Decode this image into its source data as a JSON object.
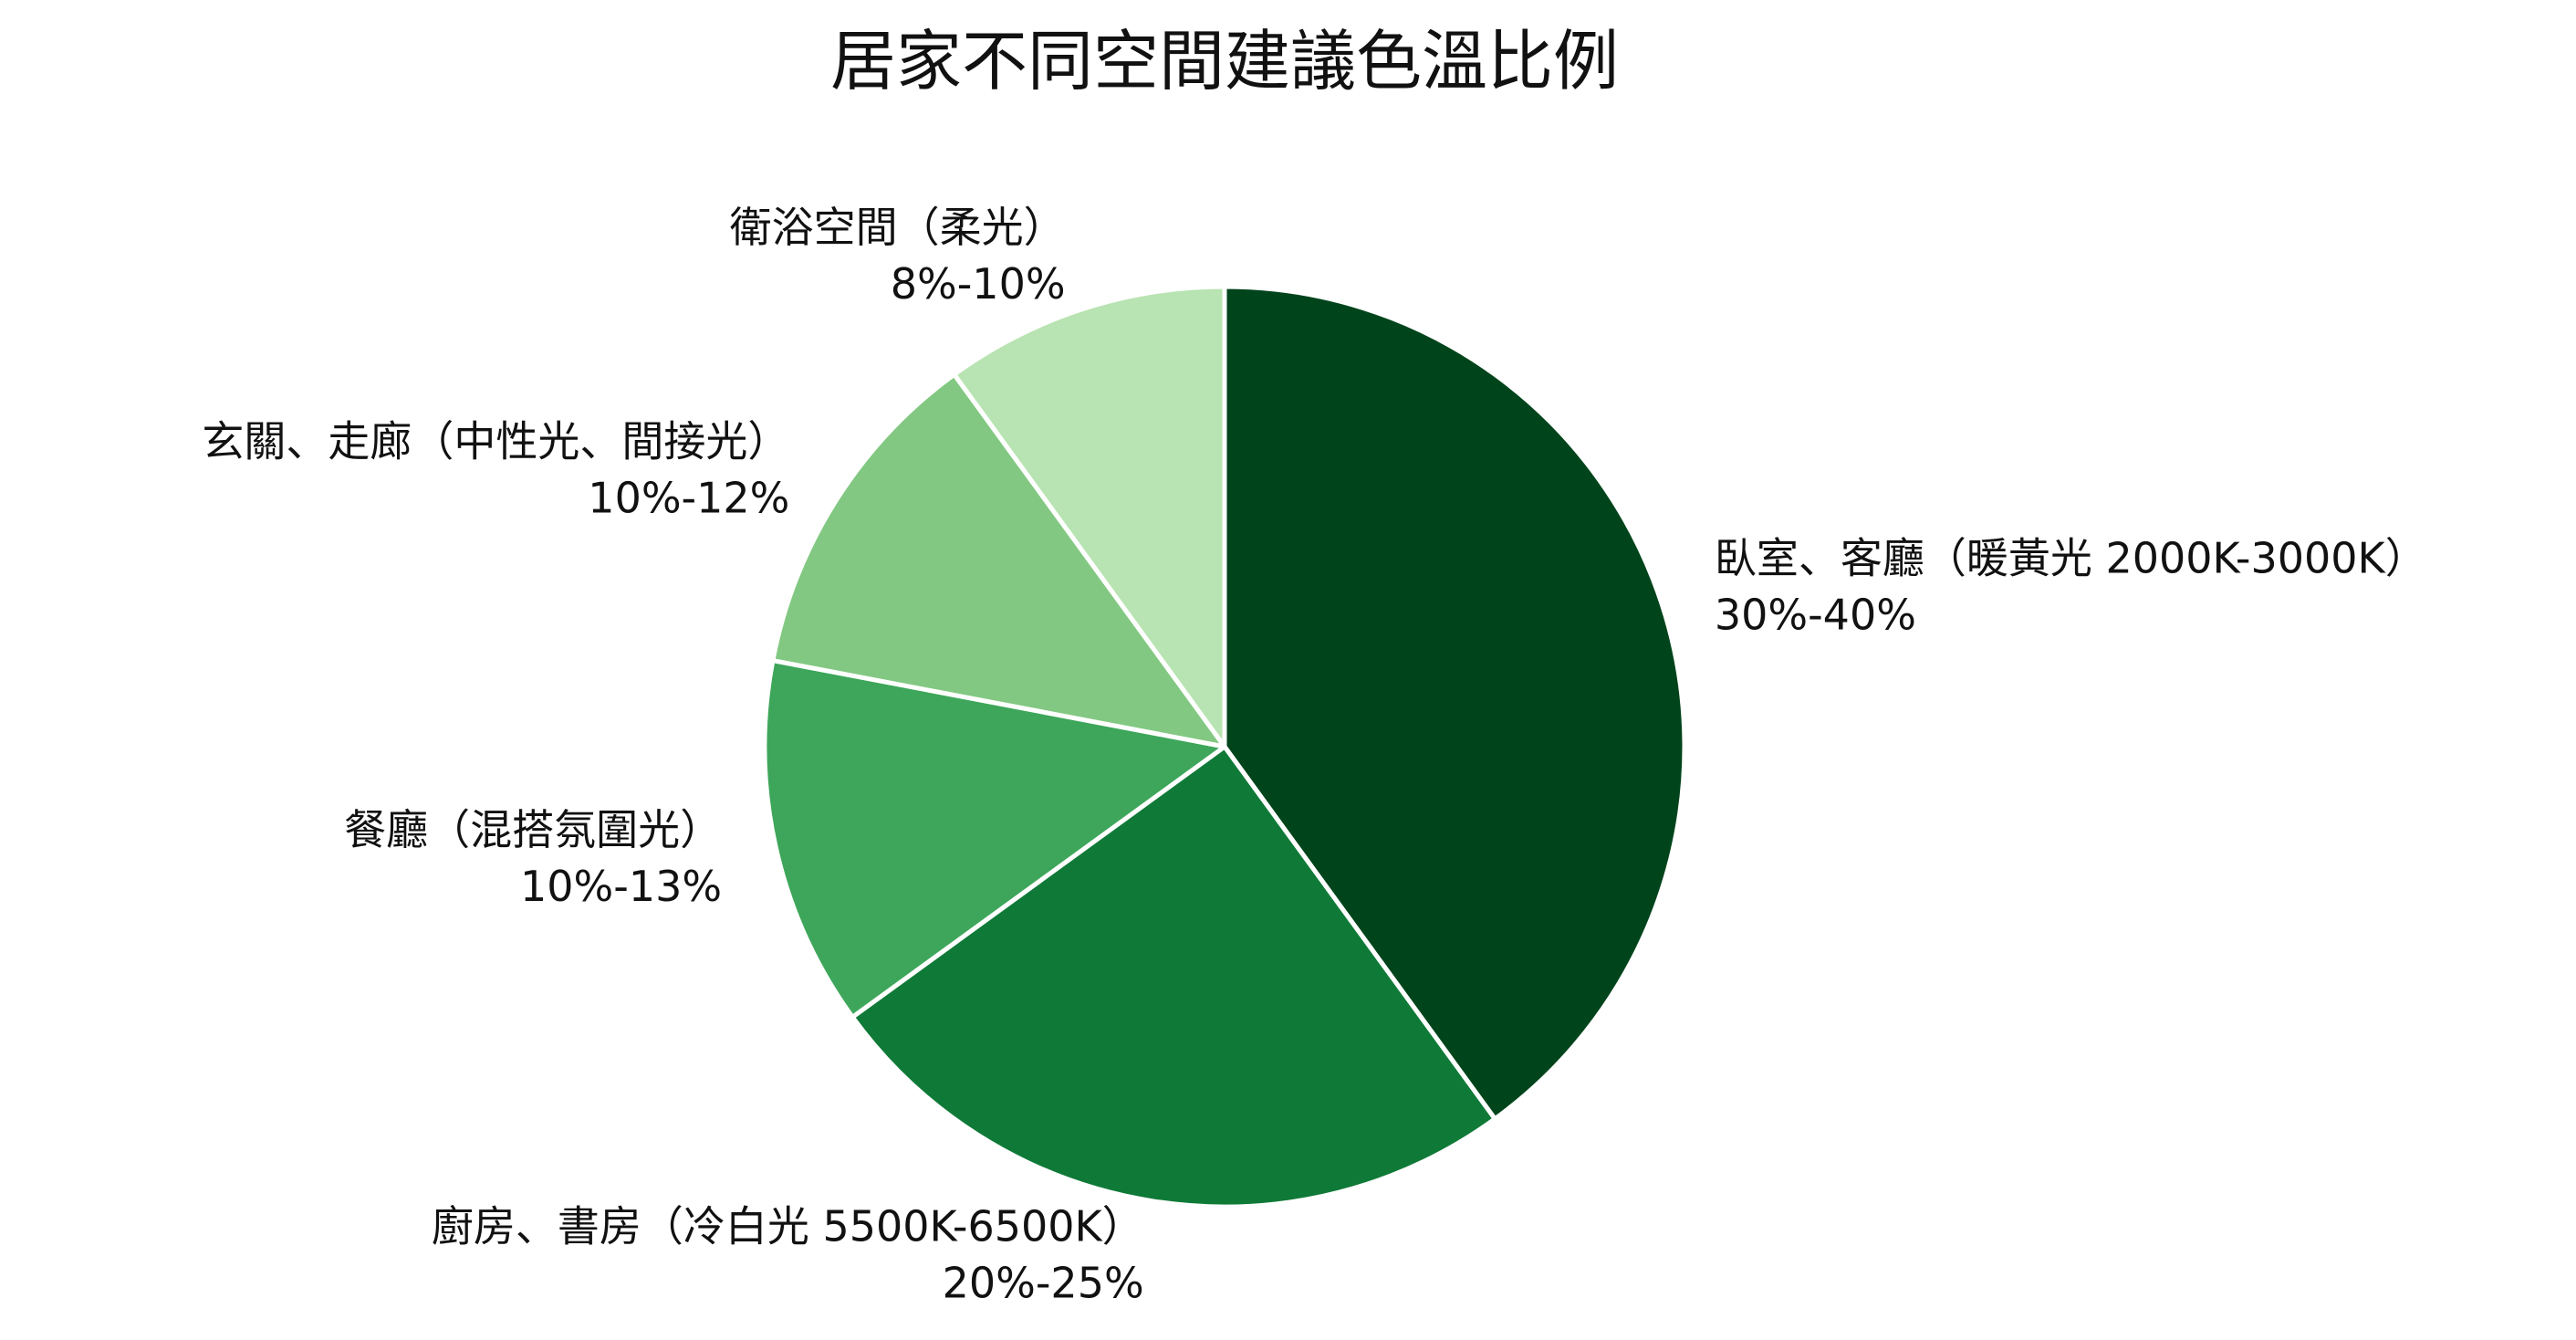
{
  "chart_data": {
    "type": "pie",
    "title": "居家不同空間建議色溫比例",
    "categories": [
      "臥室、客廳（暖黃光 2000K-3000K）",
      "廚房、書房（冷白光 5500K-6500K）",
      "餐廳（混搭氛圍光）",
      "玄關、走廊（中性光、間接光）",
      "衛浴空間（柔光）"
    ],
    "values": [
      40,
      25,
      13,
      12,
      10
    ],
    "value_labels": [
      "30%-40%",
      "20%-25%",
      "10%-13%",
      "10%-12%",
      "8%-10%"
    ],
    "colors": [
      "#00441b",
      "#0f7a37",
      "#3da65a",
      "#82c882",
      "#b8e3b2"
    ],
    "start_angle": "12 o'clock",
    "direction": "clockwise",
    "slice_border_color": "#ffffff",
    "legend": "none"
  }
}
